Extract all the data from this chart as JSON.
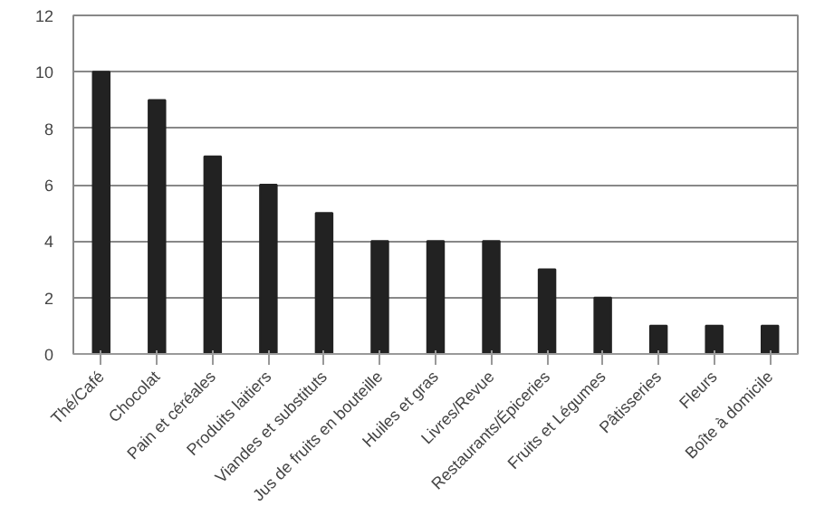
{
  "chart_data": {
    "type": "bar",
    "categories": [
      "Thé/Café",
      "Chocolat",
      "Pain et céréales",
      "Produits laitiers",
      "Viandes et substituts",
      "Jus de fruits en bouteille",
      "Huiles et gras",
      "Livres/Revue",
      "Restaurants/Épiceries",
      "Fruits et Légumes",
      "Pâtisseries",
      "Fleurs",
      "Boîte à domicile"
    ],
    "values": [
      10,
      9,
      7,
      6,
      5,
      4,
      4,
      4,
      3,
      2,
      1,
      1,
      1
    ],
    "color": "#222222",
    "ylim": [
      0,
      12
    ],
    "yticks": [
      0,
      2,
      4,
      6,
      8,
      10,
      12
    ],
    "grid": "y"
  }
}
